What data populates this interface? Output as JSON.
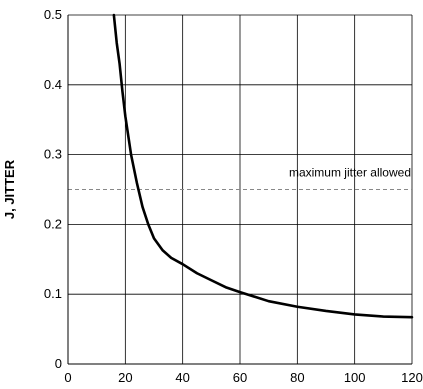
{
  "chart_data": {
    "type": "line",
    "title": "",
    "xlabel": "",
    "ylabel": "J, JITTER",
    "xlim": [
      0,
      120
    ],
    "ylim": [
      0,
      0.5
    ],
    "x_ticks": [
      0,
      20,
      40,
      60,
      80,
      100,
      120
    ],
    "x_tick_labels": [
      "0",
      "20",
      "40",
      "60",
      "80",
      "100",
      "120"
    ],
    "y_ticks": [
      0,
      0.1,
      0.2,
      0.3,
      0.4,
      0.5
    ],
    "y_tick_labels": [
      "0",
      "0.1",
      "0.2",
      "0.3",
      "0.4",
      "0.5"
    ],
    "grid": true,
    "series": [
      {
        "x": [
          16,
          17,
          18,
          19,
          20,
          22,
          24,
          26,
          28,
          30,
          33,
          36,
          40,
          45,
          50,
          55,
          60,
          70,
          80,
          90,
          100,
          110,
          120
        ],
        "y": [
          0.5,
          0.46,
          0.43,
          0.39,
          0.355,
          0.3,
          0.26,
          0.225,
          0.2,
          0.18,
          0.163,
          0.152,
          0.143,
          0.13,
          0.12,
          0.11,
          0.103,
          0.09,
          0.082,
          0.076,
          0.071,
          0.068,
          0.067
        ],
        "color": "#000000"
      }
    ],
    "reference_line": {
      "y": 0.25,
      "label": "maximum jitter allowed",
      "style": "dashed",
      "color": "#888888"
    }
  }
}
